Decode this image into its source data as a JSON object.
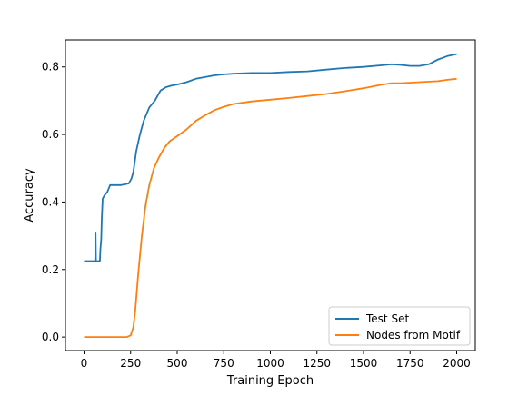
{
  "chart_data": {
    "type": "line",
    "title": "",
    "xlabel": "Training Epoch",
    "ylabel": "Accuracy",
    "xlim": [
      -100,
      2100
    ],
    "ylim": [
      -0.04,
      0.88
    ],
    "x_ticks": [
      0,
      250,
      500,
      750,
      1000,
      1250,
      1500,
      1750,
      2000
    ],
    "y_ticks": [
      0.0,
      0.2,
      0.4,
      0.6,
      0.8
    ],
    "x_tick_labels": [
      "0",
      "250",
      "500",
      "750",
      "1000",
      "1250",
      "1500",
      "1750",
      "2000"
    ],
    "y_tick_labels": [
      "0.0",
      "0.2",
      "0.4",
      "0.6",
      "0.8"
    ],
    "grid": false,
    "legend_position": "lower-right",
    "series": [
      {
        "name": "Test Set",
        "color": "#1f77b4",
        "points": [
          [
            0,
            0.225
          ],
          [
            60,
            0.225
          ],
          [
            62,
            0.31
          ],
          [
            64,
            0.225
          ],
          [
            85,
            0.225
          ],
          [
            88,
            0.26
          ],
          [
            92,
            0.29
          ],
          [
            95,
            0.35
          ],
          [
            100,
            0.41
          ],
          [
            110,
            0.42
          ],
          [
            125,
            0.43
          ],
          [
            140,
            0.45
          ],
          [
            200,
            0.45
          ],
          [
            240,
            0.455
          ],
          [
            255,
            0.47
          ],
          [
            265,
            0.49
          ],
          [
            280,
            0.55
          ],
          [
            300,
            0.6
          ],
          [
            320,
            0.64
          ],
          [
            350,
            0.68
          ],
          [
            380,
            0.7
          ],
          [
            410,
            0.73
          ],
          [
            440,
            0.74
          ],
          [
            470,
            0.745
          ],
          [
            500,
            0.748
          ],
          [
            550,
            0.755
          ],
          [
            600,
            0.765
          ],
          [
            650,
            0.77
          ],
          [
            700,
            0.775
          ],
          [
            750,
            0.778
          ],
          [
            800,
            0.78
          ],
          [
            900,
            0.782
          ],
          [
            1000,
            0.782
          ],
          [
            1100,
            0.785
          ],
          [
            1200,
            0.787
          ],
          [
            1300,
            0.792
          ],
          [
            1400,
            0.797
          ],
          [
            1500,
            0.8
          ],
          [
            1600,
            0.805
          ],
          [
            1650,
            0.808
          ],
          [
            1700,
            0.806
          ],
          [
            1750,
            0.803
          ],
          [
            1800,
            0.803
          ],
          [
            1850,
            0.808
          ],
          [
            1900,
            0.822
          ],
          [
            1950,
            0.832
          ],
          [
            2000,
            0.838
          ]
        ]
      },
      {
        "name": "Nodes from Motif",
        "color": "#ff7f0e",
        "points": [
          [
            0,
            0.0
          ],
          [
            230,
            0.0
          ],
          [
            250,
            0.005
          ],
          [
            265,
            0.03
          ],
          [
            275,
            0.08
          ],
          [
            290,
            0.18
          ],
          [
            310,
            0.3
          ],
          [
            330,
            0.39
          ],
          [
            350,
            0.45
          ],
          [
            375,
            0.5
          ],
          [
            400,
            0.53
          ],
          [
            430,
            0.56
          ],
          [
            460,
            0.58
          ],
          [
            500,
            0.595
          ],
          [
            550,
            0.615
          ],
          [
            600,
            0.64
          ],
          [
            650,
            0.657
          ],
          [
            700,
            0.672
          ],
          [
            750,
            0.682
          ],
          [
            800,
            0.69
          ],
          [
            900,
            0.698
          ],
          [
            1000,
            0.703
          ],
          [
            1100,
            0.708
          ],
          [
            1200,
            0.714
          ],
          [
            1300,
            0.72
          ],
          [
            1400,
            0.728
          ],
          [
            1500,
            0.737
          ],
          [
            1600,
            0.748
          ],
          [
            1650,
            0.752
          ],
          [
            1700,
            0.752
          ],
          [
            1800,
            0.755
          ],
          [
            1900,
            0.758
          ],
          [
            1950,
            0.762
          ],
          [
            2000,
            0.765
          ]
        ]
      }
    ]
  }
}
